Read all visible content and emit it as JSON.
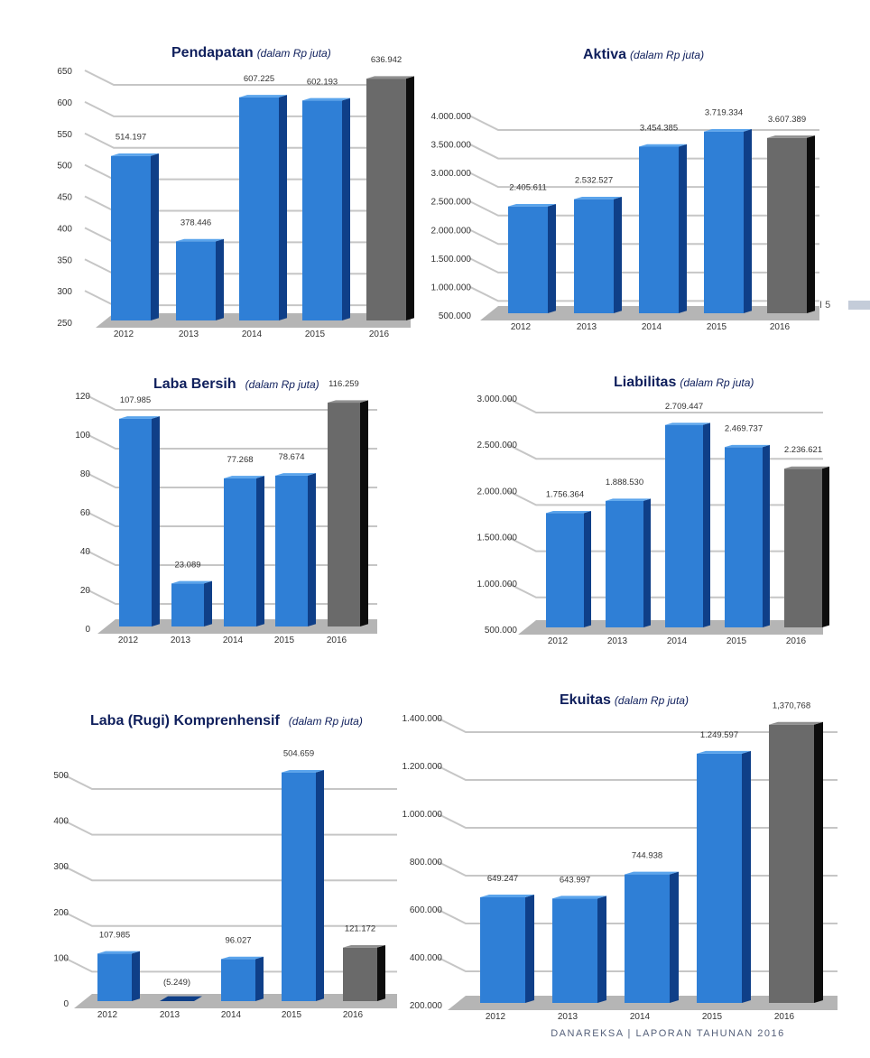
{
  "page": {
    "page_number": "I 5",
    "footer": "DANAREKSA | LAPORAN TAHUNAN 2016"
  },
  "colors": {
    "bar_front": "#2f7fd6",
    "bar_side": "#0f3f88",
    "bar_top": "#5aa4ec",
    "bar_latest_front": "#6a6a6a",
    "bar_latest_side": "#0d0d0d",
    "bar_latest_top": "#8f8f8f",
    "floor": "#b5b5b5",
    "grid": "#c6c6c6",
    "title": "#0f1f5c",
    "footer_tab": "#c4ccd9"
  },
  "chart_data": [
    {
      "id": "pendapatan",
      "type": "bar",
      "title": "Pendapatan",
      "unit": "(dalam Rp juta)",
      "categories": [
        "2012",
        "2013",
        "2014",
        "2015",
        "2016"
      ],
      "values": [
        514197,
        378446,
        607225,
        602193,
        636942
      ],
      "value_labels": [
        "514.197",
        "378.446",
        "607.225",
        "602.193",
        "636.942"
      ],
      "y_ticks": [
        "250",
        "300",
        "350",
        "400",
        "450",
        "500",
        "550",
        "600",
        "650"
      ],
      "ylim": [
        250000,
        650000
      ],
      "grid": true,
      "highlight_last": true
    },
    {
      "id": "aktiva",
      "type": "bar",
      "title": "Aktiva",
      "unit": "(dalam Rp juta)",
      "categories": [
        "2012",
        "2013",
        "2014",
        "2015",
        "2016"
      ],
      "values": [
        2405611,
        2532527,
        3454385,
        3719334,
        3607389
      ],
      "value_labels": [
        "2.405.611",
        "2.532.527",
        "3.454.385",
        "3.719.334",
        "3.607.389"
      ],
      "y_ticks": [
        "500.000",
        "1.000.000",
        "1.500.000",
        "2.000.000",
        "2.500.000",
        "3.000.000",
        "3.500.000",
        "4.000.000"
      ],
      "ylim": [
        500000,
        4000000
      ],
      "grid": true,
      "highlight_last": true
    },
    {
      "id": "laba-bersih",
      "type": "bar",
      "title": "Laba Bersih",
      "unit": "(dalam Rp juta)",
      "categories": [
        "2012",
        "2013",
        "2014",
        "2015",
        "2016"
      ],
      "values": [
        107985,
        23089,
        77268,
        78674,
        116259
      ],
      "value_labels": [
        "107.985",
        "23.089",
        "77.268",
        "78.674",
        "116.259"
      ],
      "y_ticks": [
        "0",
        "20",
        "40",
        "60",
        "80",
        "100",
        "120"
      ],
      "ylim": [
        0,
        120000
      ],
      "grid": true,
      "highlight_last": true
    },
    {
      "id": "liabilitas",
      "type": "bar",
      "title": "Liabilitas",
      "unit": "(dalam Rp juta)",
      "categories": [
        "2012",
        "2013",
        "2014",
        "2015",
        "2016"
      ],
      "values": [
        1756364,
        1888530,
        2709447,
        2469737,
        2236621
      ],
      "value_labels": [
        "1.756.364",
        "1.888.530",
        "2.709.447",
        "2.469.737",
        "2.236.621"
      ],
      "y_ticks": [
        "500.000",
        "1.000.000",
        "1.500.000",
        "2.000.000",
        "2.500.000",
        "3.000.000"
      ],
      "ylim": [
        500000,
        3000000
      ],
      "grid": true,
      "highlight_last": true
    },
    {
      "id": "laba-komprehensif",
      "type": "bar",
      "title": "Laba (Rugi) Komprenhensif",
      "unit": "(dalam Rp juta)",
      "categories": [
        "2012",
        "2013",
        "2014",
        "2015",
        "2016"
      ],
      "values": [
        107985,
        -5249,
        96027,
        504659,
        121172
      ],
      "value_labels": [
        "107.985",
        "(5.249)",
        "96.027",
        "504.659",
        "121.172"
      ],
      "y_ticks": [
        "0",
        "100",
        "200",
        "300",
        "400",
        "500"
      ],
      "ylim": [
        0,
        500000
      ],
      "grid": true,
      "highlight_last": true
    },
    {
      "id": "ekuitas",
      "type": "bar",
      "title": "Ekuitas",
      "unit": "(dalam Rp juta)",
      "categories": [
        "2012",
        "2013",
        "2014",
        "2015",
        "2016"
      ],
      "values": [
        649247,
        643997,
        744938,
        1249597,
        1370768
      ],
      "value_labels": [
        "649.247",
        "643.997",
        "744.938",
        "1.249.597",
        "1,370,768"
      ],
      "y_ticks": [
        "200.000",
        "400.000",
        "600.000",
        "800.000",
        "1.000.000",
        "1.200.000",
        "1.400.000"
      ],
      "ylim": [
        200000,
        1400000
      ],
      "grid": true,
      "highlight_last": true
    }
  ]
}
